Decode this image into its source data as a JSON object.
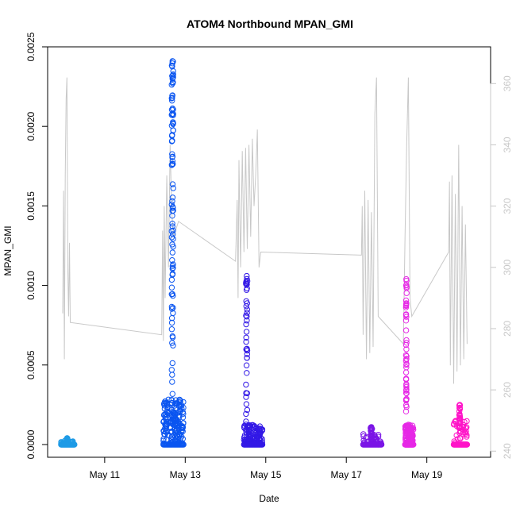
{
  "chart_data": {
    "type": "scatter",
    "title": "ATOM4 Northbound MPAN_GMI",
    "xlabel": "Date",
    "ylabel": "MPAN_GMI",
    "x_ticks": [
      "May 11",
      "May 13",
      "May 15",
      "May 17",
      "May 19"
    ],
    "y_ticks": [
      "0.0000",
      "0.0005",
      "0.0010",
      "0.0015",
      "0.0020",
      "0.0025"
    ],
    "y2_ticks": [
      "240",
      "260",
      "280",
      "300",
      "320",
      "340",
      "360"
    ],
    "xlim": [
      "2016-05-09T14:00",
      "2016-05-20T14:00"
    ],
    "ylim": [
      -8e-05,
      0.0025
    ],
    "y2lim": [
      238,
      372
    ],
    "secondary_line_color": "#c8c8c8",
    "series": [
      {
        "color": "#1e9be6",
        "clusters": [
          {
            "start": "2016-05-09T22:00",
            "end": "2016-05-10T06:00",
            "max": 4e-05,
            "profile": "low"
          }
        ]
      },
      {
        "color": "#0a55f0",
        "clusters": [
          {
            "start": "2016-05-12T11:00",
            "end": "2016-05-12T23:00",
            "max": 0.00241,
            "profile": "tall"
          }
        ]
      },
      {
        "color": "#3218e6",
        "clusters": [
          {
            "start": "2016-05-14T11:00",
            "end": "2016-05-14T22:00",
            "max": 0.00106,
            "profile": "mid"
          }
        ]
      },
      {
        "color": "#7a14e6",
        "clusters": [
          {
            "start": "2016-05-17T10:00",
            "end": "2016-05-17T21:00",
            "max": 0.00011,
            "profile": "low"
          }
        ]
      },
      {
        "color": "#e628e6",
        "clusters": [
          {
            "start": "2016-05-18T11:00",
            "end": "2016-05-18T16:00",
            "max": 0.00104,
            "profile": "mid"
          }
        ]
      },
      {
        "color": "#ff14c8",
        "clusters": [
          {
            "start": "2016-05-19T16:00",
            "end": "2016-05-20T00:00",
            "max": 0.00025,
            "profile": "low"
          }
        ]
      }
    ],
    "secondary_series": [
      {
        "x": "2016-05-09T23:00",
        "y": 285
      },
      {
        "x": "2016-05-09T23:30",
        "y": 325
      },
      {
        "x": "2016-05-10T00:00",
        "y": 270
      },
      {
        "x": "2016-05-10T00:30",
        "y": 330
      },
      {
        "x": "2016-05-10T01:00",
        "y": 355
      },
      {
        "x": "2016-05-10T01:30",
        "y": 362
      },
      {
        "x": "2016-05-10T02:00",
        "y": 300
      },
      {
        "x": "2016-05-10T02:30",
        "y": 284
      },
      {
        "x": "2016-05-10T03:00",
        "y": 308
      },
      {
        "x": "2016-05-10T03:30",
        "y": 282
      },
      {
        "x": "2016-05-12T10:00",
        "y": 278
      },
      {
        "x": "2016-05-12T10:30",
        "y": 312
      },
      {
        "x": "2016-05-12T11:00",
        "y": 276
      },
      {
        "x": "2016-05-12T11:30",
        "y": 320
      },
      {
        "x": "2016-05-12T12:00",
        "y": 290
      },
      {
        "x": "2016-05-12T13:00",
        "y": 330
      },
      {
        "x": "2016-05-12T14:00",
        "y": 300
      },
      {
        "x": "2016-05-12T15:00",
        "y": 340
      },
      {
        "x": "2016-05-12T16:00",
        "y": 318
      },
      {
        "x": "2016-05-12T17:00",
        "y": 310
      },
      {
        "x": "2016-05-12T20:00",
        "y": 315
      },
      {
        "x": "2016-05-14T06:00",
        "y": 302
      },
      {
        "x": "2016-05-14T07:00",
        "y": 322
      },
      {
        "x": "2016-05-14T07:30",
        "y": 290
      },
      {
        "x": "2016-05-14T08:00",
        "y": 335
      },
      {
        "x": "2016-05-14T09:00",
        "y": 300
      },
      {
        "x": "2016-05-14T10:00",
        "y": 338
      },
      {
        "x": "2016-05-14T11:00",
        "y": 305
      },
      {
        "x": "2016-05-14T12:00",
        "y": 339
      },
      {
        "x": "2016-05-14T13:00",
        "y": 306
      },
      {
        "x": "2016-05-14T14:00",
        "y": 340
      },
      {
        "x": "2016-05-14T15:00",
        "y": 310
      },
      {
        "x": "2016-05-14T16:00",
        "y": 342
      },
      {
        "x": "2016-05-14T17:00",
        "y": 320
      },
      {
        "x": "2016-05-14T18:00",
        "y": 330
      },
      {
        "x": "2016-05-14T19:00",
        "y": 345
      },
      {
        "x": "2016-05-14T20:00",
        "y": 300
      },
      {
        "x": "2016-05-14T21:00",
        "y": 305
      },
      {
        "x": "2016-05-17T09:00",
        "y": 304
      },
      {
        "x": "2016-05-17T09:30",
        "y": 320
      },
      {
        "x": "2016-05-17T10:00",
        "y": 278
      },
      {
        "x": "2016-05-17T11:00",
        "y": 325
      },
      {
        "x": "2016-05-17T12:00",
        "y": 270
      },
      {
        "x": "2016-05-17T13:00",
        "y": 322
      },
      {
        "x": "2016-05-17T14:00",
        "y": 272
      },
      {
        "x": "2016-05-17T15:00",
        "y": 318
      },
      {
        "x": "2016-05-17T16:00",
        "y": 274
      },
      {
        "x": "2016-05-17T17:00",
        "y": 350
      },
      {
        "x": "2016-05-17T18:00",
        "y": 362
      },
      {
        "x": "2016-05-17T19:00",
        "y": 284
      },
      {
        "x": "2016-05-18T10:00",
        "y": 275
      },
      {
        "x": "2016-05-18T11:00",
        "y": 310
      },
      {
        "x": "2016-05-18T12:00",
        "y": 340
      },
      {
        "x": "2016-05-18T13:00",
        "y": 362
      },
      {
        "x": "2016-05-18T14:00",
        "y": 290
      },
      {
        "x": "2016-05-18T15:00",
        "y": 284
      },
      {
        "x": "2016-05-19T13:00",
        "y": 305
      },
      {
        "x": "2016-05-19T13:30",
        "y": 328
      },
      {
        "x": "2016-05-19T14:00",
        "y": 268
      },
      {
        "x": "2016-05-19T15:00",
        "y": 330
      },
      {
        "x": "2016-05-19T16:00",
        "y": 262
      },
      {
        "x": "2016-05-19T17:00",
        "y": 324
      },
      {
        "x": "2016-05-19T18:00",
        "y": 266
      },
      {
        "x": "2016-05-19T19:00",
        "y": 340
      },
      {
        "x": "2016-05-19T20:00",
        "y": 268
      },
      {
        "x": "2016-05-19T21:00",
        "y": 320
      },
      {
        "x": "2016-05-19T22:00",
        "y": 270
      },
      {
        "x": "2016-05-19T23:00",
        "y": 314
      },
      {
        "x": "2016-05-20T00:00",
        "y": 275
      }
    ]
  }
}
